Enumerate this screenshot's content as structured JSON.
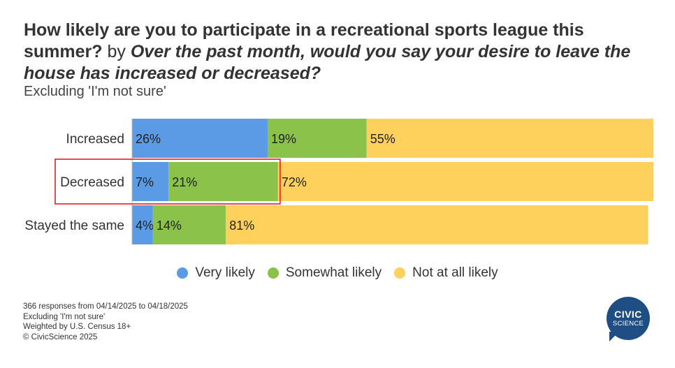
{
  "header": {
    "title_part1": "How likely are you to participate in a recreational sports league this summer?",
    "title_by": "by",
    "title_part2": "Over the past month, would you say your desire to leave the house has increased or decreased?",
    "subtitle": "Excluding 'I'm not sure'"
  },
  "chart_data": {
    "type": "bar",
    "orientation": "horizontal",
    "stacked": true,
    "categories": [
      "Increased",
      "Decreased",
      "Stayed the same"
    ],
    "series": [
      {
        "name": "Very likely",
        "values": [
          26,
          7,
          4
        ],
        "color": "#5b9be6"
      },
      {
        "name": "Somewhat likely",
        "values": [
          19,
          21,
          14
        ],
        "color": "#8bc24a"
      },
      {
        "name": "Not at all likely",
        "values": [
          55,
          72,
          81
        ],
        "color": "#fdd15c"
      }
    ],
    "value_suffix": "%",
    "xlim": [
      0,
      100
    ],
    "highlighted_category": "Decreased",
    "highlight_color": "#e02020",
    "legend_position": "bottom"
  },
  "footer": {
    "lines": [
      "366 responses from 04/14/2025 to 04/18/2025",
      "Excluding 'I'm not sure'",
      "Weighted by U.S. Census 18+",
      "© CivicScience 2025"
    ]
  },
  "logo": {
    "line1": "CIVIC",
    "line2": "SCIENCE",
    "color": "#1f4e84"
  }
}
